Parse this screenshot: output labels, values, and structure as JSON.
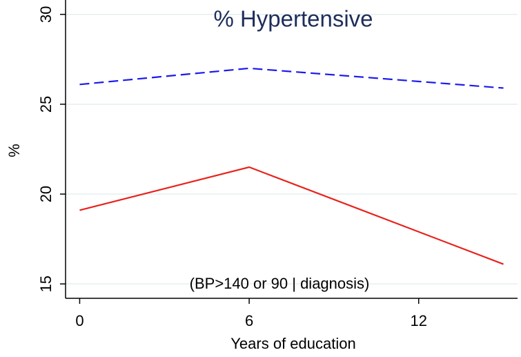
{
  "chart_data": {
    "type": "line",
    "title": "% Hypertensive",
    "annotation": "(BP>140 or 90 | diagnosis)",
    "x_label": "Years of education",
    "y_label": "%",
    "x": [
      0,
      6,
      15
    ],
    "series": [
      {
        "color": "#1a1aee",
        "line_style": "dashed",
        "values": [
          26.1,
          27.0,
          25.9
        ]
      },
      {
        "color": "#e8211a",
        "line_style": "solid",
        "values": [
          19.1,
          21.5,
          16.1
        ]
      }
    ],
    "xlim": [
      -0.5,
      15.5
    ],
    "ylim": [
      14.2,
      30.8
    ],
    "xticks": [
      0,
      6,
      12
    ],
    "yticks": [
      15,
      20,
      25,
      30
    ],
    "grid": true
  }
}
